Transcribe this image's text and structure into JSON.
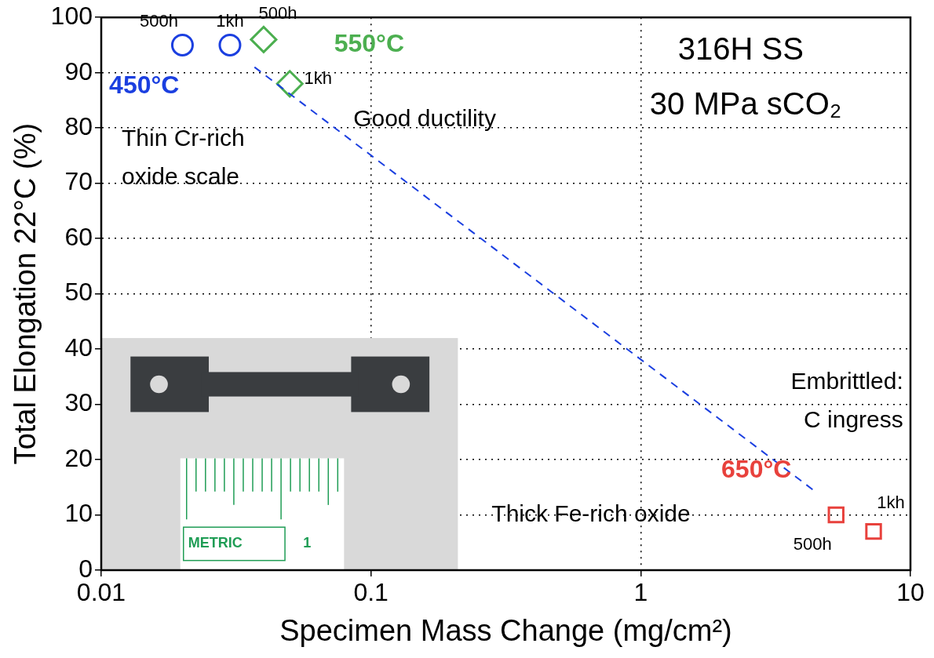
{
  "chart_data": {
    "type": "scatter",
    "x_label": "Specimen Mass Change (mg/cm²)",
    "y_label": "Total Elongation 22°C (%)",
    "log": "x",
    "grid": true,
    "xlim": [
      0.01,
      10
    ],
    "xticks": [
      0.01,
      0.1,
      1,
      10
    ],
    "ylim": [
      0,
      100
    ],
    "yticks": [
      0,
      10,
      20,
      30,
      40,
      50,
      60,
      70,
      80,
      90,
      100
    ],
    "series": [
      {
        "name": "450°C",
        "color": "#1b3fe0",
        "marker": "circle",
        "x": [
          0.02,
          0.03
        ],
        "values": [
          95,
          95
        ],
        "point_labels": [
          "500h",
          "1kh"
        ]
      },
      {
        "name": "550°C",
        "color": "#4caf50",
        "marker": "diamond",
        "x": [
          0.04,
          0.05
        ],
        "values": [
          96,
          88
        ],
        "point_labels": [
          "500h",
          "1kh"
        ]
      },
      {
        "name": "650°C",
        "color": "#e8413c",
        "marker": "square",
        "x": [
          5.3,
          7.3
        ],
        "values": [
          10,
          7
        ],
        "point_labels": [
          "500h",
          "1kh"
        ]
      }
    ],
    "trend": {
      "color": "#1b3fe0",
      "line_style": "dashed",
      "x": [
        0.037,
        4.5
      ],
      "values": [
        91,
        14
      ]
    },
    "annotations": [
      {
        "text": "Thin Cr-rich"
      },
      {
        "text": "oxide scale"
      },
      {
        "text": "Good ductility"
      },
      {
        "text": "316H SS"
      },
      {
        "text": "30 MPa sCO₂"
      },
      {
        "text": "Embrittled:"
      },
      {
        "text": "C ingress"
      },
      {
        "text": "Thick Fe-rich oxide"
      }
    ],
    "inset": {
      "ruler_text": "METRIC",
      "ruler_number": 1
    }
  }
}
